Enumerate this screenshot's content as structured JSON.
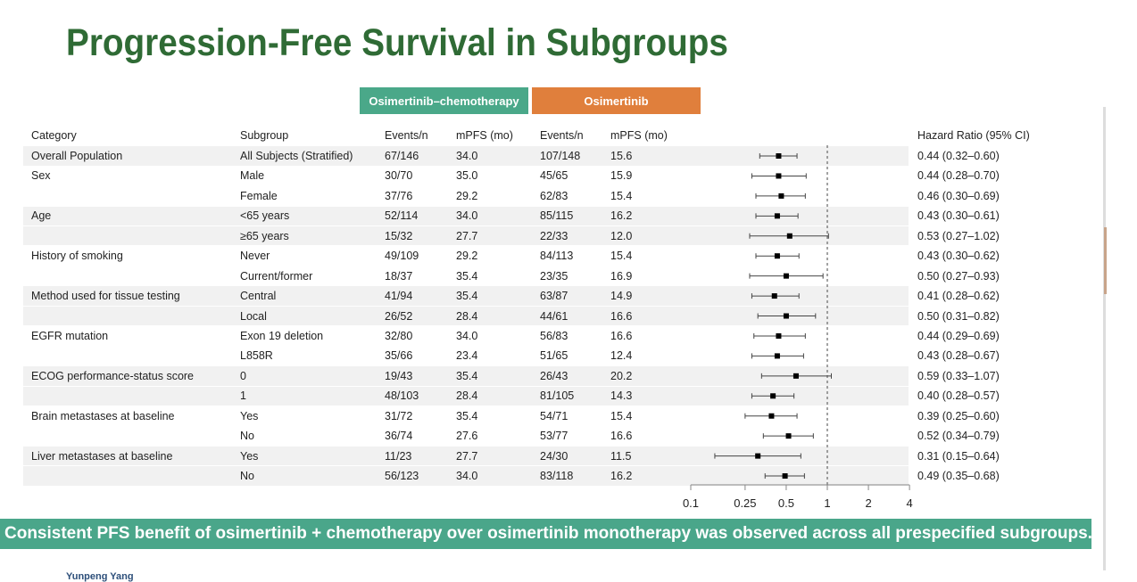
{
  "title": "Progression-Free Survival in Subgroups",
  "arm_headers": {
    "arm1": "Osimertinib–chemotherapy",
    "arm2": "Osimertinib"
  },
  "colors": {
    "title": "#2f6b35",
    "arm1": "#4aa889",
    "arm2": "#e07f3c",
    "banner": "#4aa68a"
  },
  "columns": [
    "Category",
    "Subgroup",
    "Events/n",
    "mPFS (mo)",
    "Events/n",
    "mPFS (mo)",
    "Hazard Ratio (95% CI)"
  ],
  "rows": [
    {
      "category": "Overall Population",
      "subgroup": "All Subjects (Stratified)",
      "ev1": "67/146",
      "m1": "34.0",
      "ev2": "107/148",
      "m2": "15.6",
      "hr_text": "0.44 (0.32–0.60)"
    },
    {
      "category": "Sex",
      "subgroup": "Male",
      "ev1": "30/70",
      "m1": "35.0",
      "ev2": "45/65",
      "m2": "15.9",
      "hr_text": "0.44 (0.28–0.70)"
    },
    {
      "category": "",
      "subgroup": "Female",
      "ev1": "37/76",
      "m1": "29.2",
      "ev2": "62/83",
      "m2": "15.4",
      "hr_text": "0.46 (0.30–0.69)"
    },
    {
      "category": "Age",
      "subgroup": "<65  years",
      "ev1": "52/114",
      "m1": "34.0",
      "ev2": "85/115",
      "m2": "16.2",
      "hr_text": "0.43 (0.30–0.61)"
    },
    {
      "category": "",
      "subgroup": "≥65  years",
      "ev1": "15/32",
      "m1": "27.7",
      "ev2": "22/33",
      "m2": "12.0",
      "hr_text": "0.53 (0.27–1.02)"
    },
    {
      "category": "History of smoking",
      "subgroup": "Never",
      "ev1": "49/109",
      "m1": "29.2",
      "ev2": "84/113",
      "m2": "15.4",
      "hr_text": "0.43 (0.30–0.62)"
    },
    {
      "category": "",
      "subgroup": "Current/former",
      "ev1": "18/37",
      "m1": "35.4",
      "ev2": "23/35",
      "m2": "16.9",
      "hr_text": "0.50 (0.27–0.93)"
    },
    {
      "category": "Method used for tissue testing",
      "subgroup": "Central",
      "ev1": "41/94",
      "m1": "35.4",
      "ev2": "63/87",
      "m2": "14.9",
      "hr_text": "0.41 (0.28–0.62)"
    },
    {
      "category": "",
      "subgroup": "Local",
      "ev1": "26/52",
      "m1": "28.4",
      "ev2": "44/61",
      "m2": "16.6",
      "hr_text": "0.50 (0.31–0.82)"
    },
    {
      "category": "EGFR mutation",
      "subgroup": "Exon 19 deletion",
      "ev1": "32/80",
      "m1": "34.0",
      "ev2": "56/83",
      "m2": "16.6",
      "hr_text": "0.44 (0.29–0.69)"
    },
    {
      "category": "",
      "subgroup": "L858R",
      "ev1": "35/66",
      "m1": "23.4",
      "ev2": "51/65",
      "m2": "12.4",
      "hr_text": "0.43 (0.28–0.67)"
    },
    {
      "category": "ECOG performance-status score",
      "subgroup": "0",
      "ev1": "19/43",
      "m1": "35.4",
      "ev2": "26/43",
      "m2": "20.2",
      "hr_text": "0.59 (0.33–1.07)"
    },
    {
      "category": "",
      "subgroup": "1",
      "ev1": "48/103",
      "m1": "28.4",
      "ev2": "81/105",
      "m2": "14.3",
      "hr_text": "0.40 (0.28–0.57)"
    },
    {
      "category": "Brain metastases at baseline",
      "subgroup": "Yes",
      "ev1": "31/72",
      "m1": "35.4",
      "ev2": "54/71",
      "m2": "15.4",
      "hr_text": "0.39 (0.25–0.60)"
    },
    {
      "category": "",
      "subgroup": "No",
      "ev1": "36/74",
      "m1": "27.6",
      "ev2": "53/77",
      "m2": "16.6",
      "hr_text": "0.52 (0.34–0.79)"
    },
    {
      "category": "Liver metastases at baseline",
      "subgroup": "Yes",
      "ev1": "11/23",
      "m1": "27.7",
      "ev2": "24/30",
      "m2": "11.5",
      "hr_text": "0.31 (0.15–0.64)"
    },
    {
      "category": "",
      "subgroup": "No",
      "ev1": "56/123",
      "m1": "34.0",
      "ev2": "83/118",
      "m2": "16.2",
      "hr_text": "0.49 (0.35–0.68)"
    }
  ],
  "chart_data": {
    "type": "forest",
    "x_scale": "log",
    "xlim": [
      0.1,
      4
    ],
    "x_ticks": [
      "0.1",
      "0.25",
      "0.5",
      "1",
      "2",
      "4"
    ],
    "reference_line": 1,
    "hr": [
      0.44,
      0.44,
      0.46,
      0.43,
      0.53,
      0.43,
      0.5,
      0.41,
      0.5,
      0.44,
      0.43,
      0.59,
      0.4,
      0.39,
      0.52,
      0.31,
      0.49
    ],
    "ci_low": [
      0.32,
      0.28,
      0.3,
      0.3,
      0.27,
      0.3,
      0.27,
      0.28,
      0.31,
      0.29,
      0.28,
      0.33,
      0.28,
      0.25,
      0.34,
      0.15,
      0.35
    ],
    "ci_high": [
      0.6,
      0.7,
      0.69,
      0.61,
      1.02,
      0.62,
      0.93,
      0.62,
      0.82,
      0.69,
      0.67,
      1.07,
      0.57,
      0.6,
      0.79,
      0.64,
      0.68
    ]
  },
  "shaded_groups_rows": [
    0,
    3,
    4,
    7,
    8,
    11,
    12,
    15,
    16
  ],
  "banner": "Consistent PFS benefit of osimertinib + chemotherapy over osimertinib monotherapy was observed across all prespecified subgroups.",
  "author": "Yunpeng Yang"
}
